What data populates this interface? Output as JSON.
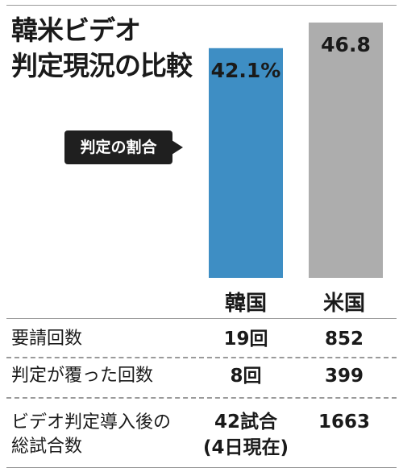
{
  "title_line1": "韓米ビデオ",
  "title_line2": "判定現況の比較",
  "callout_label": "判定の割合",
  "chart_data": {
    "type": "bar",
    "categories": [
      "韓国",
      "米国"
    ],
    "values": [
      42.1,
      46.8
    ],
    "value_labels": [
      "42.1%",
      "46.8"
    ],
    "colors": [
      "#3e8ec4",
      "#adadad"
    ],
    "ylim": [
      0,
      46.8
    ],
    "grid": false,
    "legend": "none"
  },
  "table": {
    "rows": [
      {
        "label_lines": [
          "要請回数"
        ],
        "korea_lines": [
          "19回"
        ],
        "usa_lines": [
          "852"
        ]
      },
      {
        "label_lines": [
          "判定が覆った回数"
        ],
        "korea_lines": [
          "8回"
        ],
        "usa_lines": [
          "399"
        ]
      },
      {
        "label_lines": [
          "ビデオ判定導入後の",
          "総試合数"
        ],
        "korea_lines": [
          "42試合",
          "(4日現在)"
        ],
        "usa_lines": [
          "1663"
        ]
      }
    ]
  }
}
